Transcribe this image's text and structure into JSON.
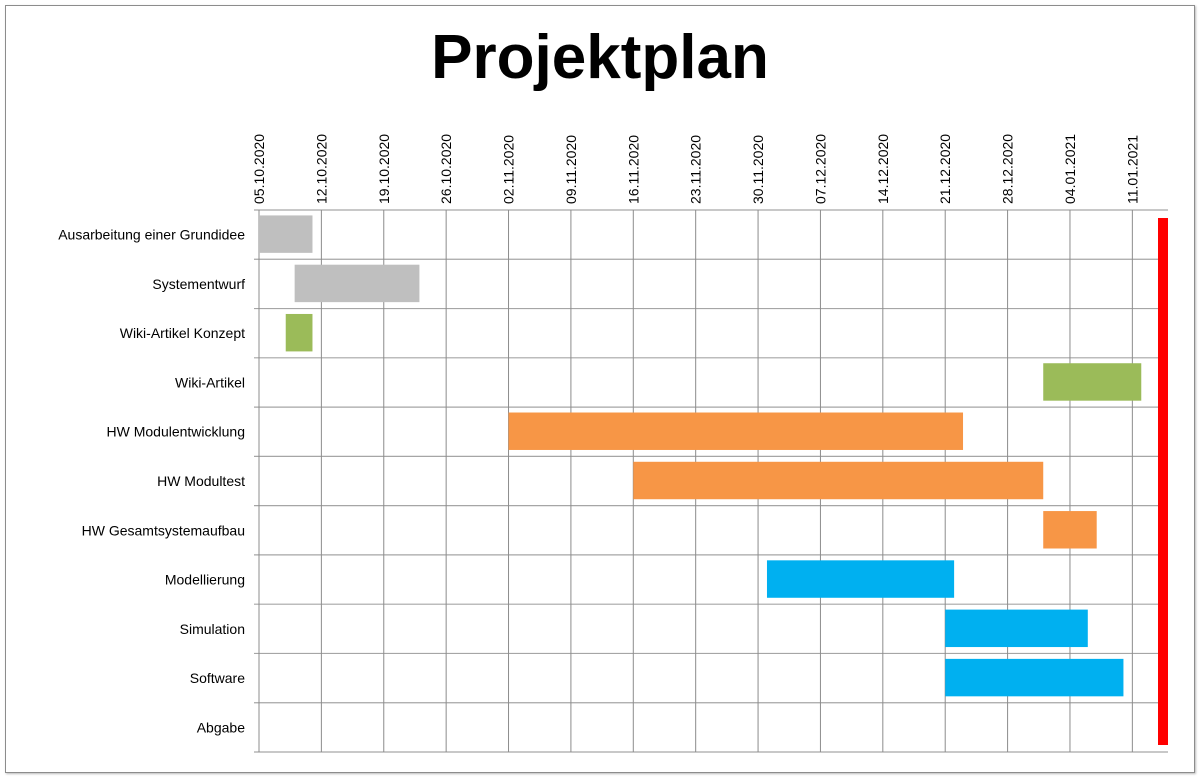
{
  "chart_data": {
    "type": "gantt",
    "title": "Projektplan",
    "xlim": [
      "05.10.2020",
      "15.01.2021"
    ],
    "x_tick_labels": [
      "05.10.2020",
      "12.10.2020",
      "19.10.2020",
      "26.10.2020",
      "02.11.2020",
      "09.11.2020",
      "16.11.2020",
      "23.11.2020",
      "30.11.2020",
      "07.12.2020",
      "14.12.2020",
      "21.12.2020",
      "28.12.2020",
      "04.01.2021",
      "11.01.2021"
    ],
    "grid": true,
    "tasks": [
      {
        "label": "Ausarbeitung einer Grundidee",
        "start": "05.10.2020",
        "end": "11.10.2020",
        "color": "#bfbfbf"
      },
      {
        "label": "Systementwurf",
        "start": "09.10.2020",
        "end": "23.10.2020",
        "color": "#bfbfbf"
      },
      {
        "label": "Wiki-Artikel Konzept",
        "start": "08.10.2020",
        "end": "11.10.2020",
        "color": "#9bbb59"
      },
      {
        "label": "Wiki-Artikel",
        "start": "01.01.2021",
        "end": "12.01.2021",
        "color": "#9bbb59"
      },
      {
        "label": "HW Modulentwicklung",
        "start": "02.11.2020",
        "end": "23.12.2020",
        "color": "#f79646"
      },
      {
        "label": "HW Modultest",
        "start": "16.11.2020",
        "end": "01.01.2021",
        "color": "#f79646"
      },
      {
        "label": "HW Gesamtsystemaufbau",
        "start": "01.01.2021",
        "end": "07.01.2021",
        "color": "#f79646"
      },
      {
        "label": "Modellierung",
        "start": "01.12.2020",
        "end": "22.12.2020",
        "color": "#00b0f0"
      },
      {
        "label": "Simulation",
        "start": "21.12.2020",
        "end": "06.01.2021",
        "color": "#00b0f0"
      },
      {
        "label": "Software",
        "start": "21.12.2020",
        "end": "10.01.2021",
        "color": "#00b0f0"
      },
      {
        "label": "Abgabe",
        "milestone": "15.01.2021",
        "color": "#ff0000"
      }
    ]
  }
}
